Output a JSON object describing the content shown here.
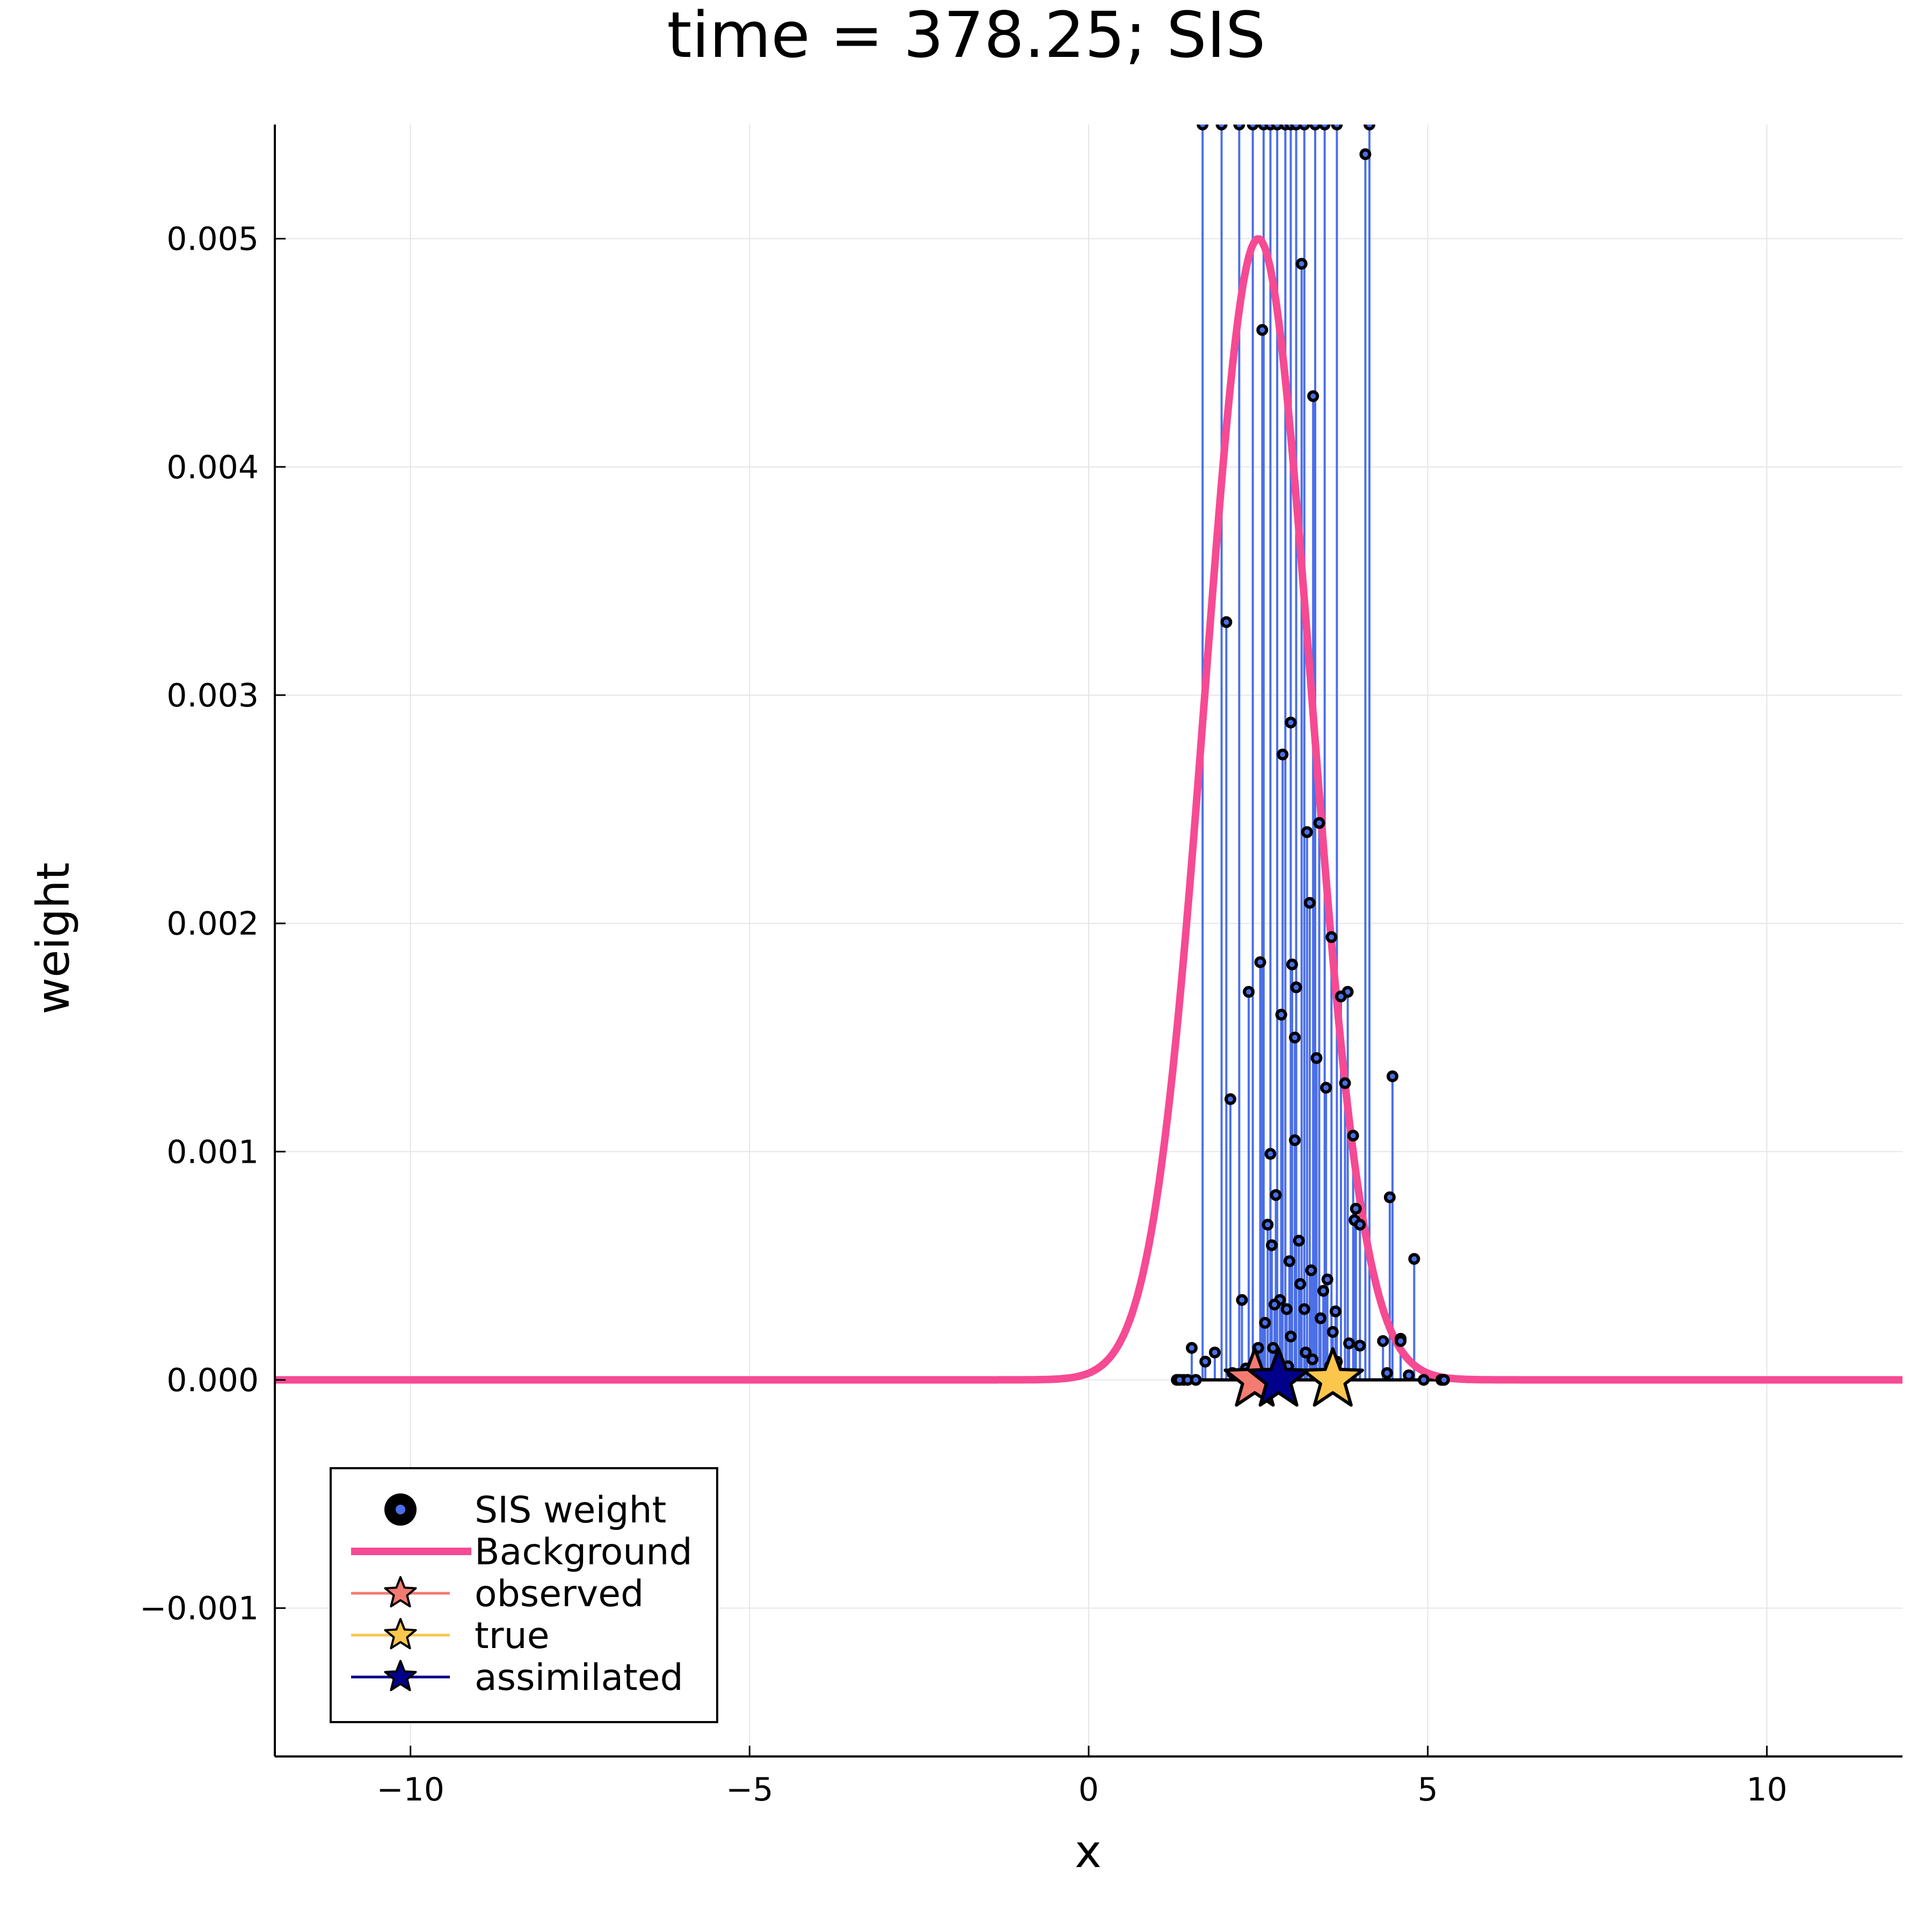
{
  "chart_data": {
    "type": "line",
    "title": "time = 378.25; SIS",
    "xlabel": "x",
    "ylabel": "weight",
    "xlim": [
      -12,
      12
    ],
    "ylim": [
      -0.00165,
      0.0055
    ],
    "grid": true,
    "x_ticks": [
      -10,
      -5,
      0,
      5,
      10
    ],
    "x_tick_labels": [
      "−10",
      "−5",
      "0",
      "5",
      "10"
    ],
    "y_ticks": [
      -0.001,
      0,
      0.001,
      0.002,
      0.003,
      0.004,
      0.005
    ],
    "y_tick_labels": [
      "−0.001",
      "0.000",
      "0.001",
      "0.002",
      "0.003",
      "0.004",
      "0.005"
    ],
    "legend_position": "bottom-left",
    "legend": [
      "SIS weight",
      "Background",
      "observed",
      "true",
      "assimilated"
    ],
    "colors": {
      "sis_stem": "#4b6fe8",
      "sis_marker": "#000000",
      "background": "#f64a93",
      "observed": "#f47b72",
      "true": "#fcc64c",
      "assimilated": "#00008b",
      "grid": "#e6e6e6"
    },
    "background_curve": {
      "name": "Background",
      "peak_x": 2.5,
      "peak_weight": 0.005,
      "sigma": 0.78
    },
    "sis_weight": {
      "name": "SIS weight",
      "x": [
        1.68,
        1.96,
        2.22,
        2.42,
        2.58,
        2.68,
        2.78,
        2.9,
        2.98,
        3.06,
        3.18,
        3.34,
        3.48,
        3.66,
        4.14,
        4.08,
        2.56,
        3.14,
        2.03,
        3.31,
        2.98,
        2.86,
        3.4,
        3.22,
        2.53,
        3.58,
        3.82,
        3.0,
        2.09,
        2.36,
        2.84,
        3.06,
        3.72,
        3.26,
        3.04,
        2.68,
        3.5,
        4.48,
        3.36,
        3.78,
        4.44,
        2.76,
        3.04,
        3.9,
        3.92,
        2.64,
        3.1,
        2.7,
        2.96,
        4.0,
        4.8,
        3.94,
        2.82,
        3.12,
        3.28,
        3.46,
        3.52,
        3.64,
        2.74,
        2.92,
        3.18,
        3.42,
        2.98,
        3.6,
        3.84,
        2.6,
        2.26,
        2.72,
        4.34,
        4.6,
        3.3,
        2.5,
        1.52,
        1.86,
        1.72,
        4.0,
        3.2,
        2.94,
        3.56,
        4.6,
        1.3,
        1.4,
        1.34,
        1.46,
        1.58,
        4.94,
        5.2,
        5.24,
        4.4,
        4.72,
        2.32,
        2.12,
        3.66
      ],
      "weight": [
        0.0055,
        0.0055,
        0.0055,
        0.0055,
        0.0055,
        0.0055,
        0.0055,
        0.0055,
        0.0055,
        0.0055,
        0.0055,
        0.0055,
        0.0055,
        0.0055,
        0.0055,
        0.00537,
        0.0046,
        0.00489,
        0.00332,
        0.00431,
        0.00288,
        0.00274,
        0.00244,
        0.0024,
        0.00183,
        0.00194,
        0.0017,
        0.00182,
        0.00123,
        0.0017,
        0.0016,
        0.00172,
        0.00168,
        0.00209,
        0.0015,
        0.00099,
        0.00128,
        0.00133,
        0.00141,
        0.0013,
        0.0008,
        0.00081,
        0.00105,
        0.00107,
        0.0007,
        0.00068,
        0.00061,
        0.00059,
        0.00052,
        0.00068,
        0.00053,
        0.00075,
        0.00035,
        0.00042,
        0.00048,
        0.00039,
        0.00044,
        0.0003,
        0.00033,
        0.00031,
        0.00031,
        0.00027,
        0.00019,
        0.00021,
        0.00016,
        0.00025,
        0.00035,
        0.00014,
        0.00017,
        0.00018,
        9e-05,
        0.00014,
        0.00014,
        0.00012,
        8e-05,
        0.00015,
        0.00012,
        6e-05,
        6e-05,
        0.00017,
        0.0,
        0.0,
        0.0,
        0.0,
        0.0,
        0.0,
        0.0,
        0.0,
        3e-05,
        2e-05,
        5e-05,
        3e-05,
        8e-05
      ]
    },
    "stars": [
      {
        "name": "observed",
        "x": 2.45,
        "weight": 0.0
      },
      {
        "name": "true",
        "x": 3.6,
        "weight": 0.0
      },
      {
        "name": "assimilated",
        "x": 2.8,
        "weight": 0.0
      }
    ]
  }
}
